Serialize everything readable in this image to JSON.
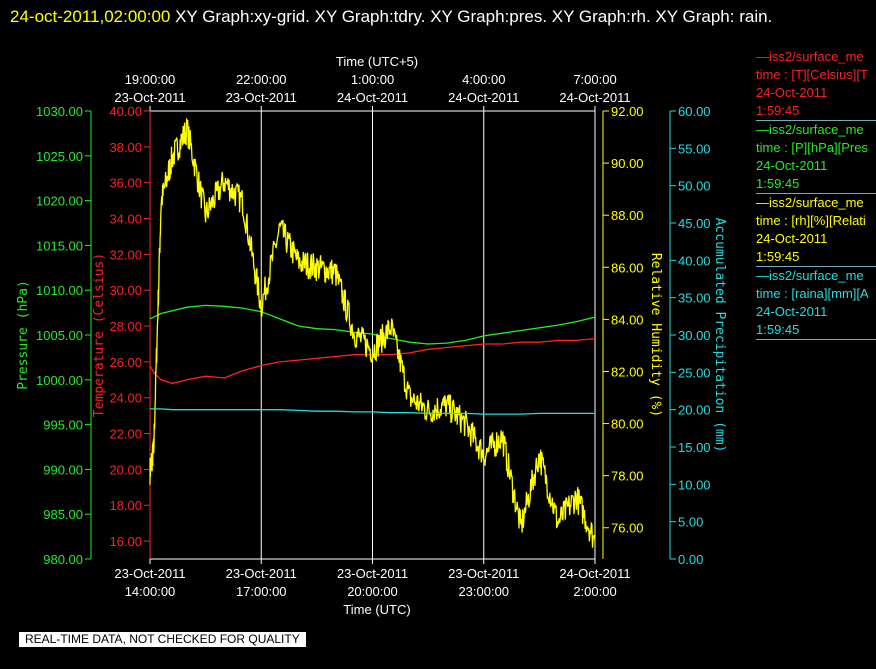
{
  "header": {
    "timestamp": "24-oct-2011,02:00:00",
    "titles": " XY Graph:xy-grid.  XY Graph:tdry.  XY Graph:pres.  XY Graph:rh.  XY Graph: rain."
  },
  "colors": {
    "temperature": "#ff2020",
    "pressure": "#22ee22",
    "humidity": "#ffff00",
    "precipitation": "#22dddd",
    "grid": "#ffffff",
    "frame": "#ffffff"
  },
  "legend": [
    {
      "name": "—iss2/surface_me",
      "units": "time : [T][Celsius][T",
      "date": "24-Oct-2011",
      "time": "1:59:45",
      "color": "#ff2020"
    },
    {
      "name": "—iss2/surface_me",
      "units": "time : [P][hPa][Pres",
      "date": "24-Oct-2011",
      "time": "1:59:45",
      "color": "#22ee22"
    },
    {
      "name": "—iss2/surface_me",
      "units": "time : [rh][%][Relati",
      "date": "24-Oct-2011",
      "time": "1:59:45",
      "color": "#ffff00"
    },
    {
      "name": "—iss2/surface_me",
      "units": "time : [raina][mm][A",
      "date": "24-Oct-2011",
      "time": "1:59:45",
      "color": "#22dddd"
    }
  ],
  "notice": "REAL-TIME DATA, NOT CHECKED FOR QUALITY",
  "chart_data": {
    "type": "line",
    "grid": true,
    "x_top": {
      "label": "Time (UTC+5)",
      "ticks": [
        {
          "time": "19:00:00",
          "date": "23-Oct-2011"
        },
        {
          "time": "22:00:00",
          "date": "23-Oct-2011"
        },
        {
          "time": "1:00:00",
          "date": "24-Oct-2011"
        },
        {
          "time": "4:00:00",
          "date": "24-Oct-2011"
        },
        {
          "time": "7:00:00",
          "date": "24-Oct-2011"
        }
      ]
    },
    "x_bottom": {
      "label": "Time (UTC)",
      "range": [
        "2011-10-23T14:00:00",
        "2011-10-24T02:00:00"
      ],
      "ticks": [
        {
          "date": "23-Oct-2011",
          "time": "14:00:00"
        },
        {
          "date": "23-Oct-2011",
          "time": "17:00:00"
        },
        {
          "date": "23-Oct-2011",
          "time": "20:00:00"
        },
        {
          "date": "23-Oct-2011",
          "time": "23:00:00"
        },
        {
          "date": "24-Oct-2011",
          "time": "2:00:00"
        }
      ]
    },
    "axes": {
      "pressure": {
        "label": "Pressure (hPa)",
        "range": [
          980,
          1030
        ],
        "ticks": [
          "980.00",
          "985.00",
          "990.00",
          "995.00",
          "1000.00",
          "1005.00",
          "1010.00",
          "1015.00",
          "1020.00",
          "1025.00",
          "1030.00"
        ]
      },
      "temperature": {
        "label": "Temperature (Celsius)",
        "range": [
          15,
          40
        ],
        "ticks": [
          "16.00",
          "18.00",
          "20.00",
          "22.00",
          "24.00",
          "26.00",
          "28.00",
          "30.00",
          "32.00",
          "34.00",
          "36.00",
          "38.00",
          "40.00"
        ]
      },
      "humidity": {
        "label": "Relative Humidity (%)",
        "range": [
          74.8,
          92
        ],
        "ticks": [
          "76.00",
          "78.00",
          "80.00",
          "82.00",
          "84.00",
          "86.00",
          "88.00",
          "90.00",
          "92.00"
        ]
      },
      "precipitation": {
        "label": "Accumulated Precipitation (mm)",
        "range": [
          0,
          60
        ],
        "ticks": [
          "0.00",
          "5.00",
          "10.00",
          "15.00",
          "20.00",
          "25.00",
          "30.00",
          "35.00",
          "40.00",
          "45.00",
          "50.00",
          "55.00",
          "60.00"
        ]
      }
    },
    "x_hours": [
      0,
      0.1,
      0.3,
      0.6,
      1,
      1.5,
      2,
      2.5,
      3,
      3.5,
      4,
      4.5,
      5,
      5.5,
      6,
      6.5,
      7,
      7.5,
      8,
      8.5,
      9,
      9.5,
      10,
      10.5,
      11,
      11.5,
      12
    ],
    "series": [
      {
        "name": "Temperature",
        "axis": "temperature",
        "color": "#ff2020",
        "values": [
          25.8,
          25.4,
          25.0,
          24.8,
          25.0,
          25.2,
          25.1,
          25.5,
          25.8,
          26.0,
          26.1,
          26.2,
          26.3,
          26.4,
          26.4,
          26.4,
          26.5,
          26.7,
          26.8,
          26.9,
          27.0,
          27.0,
          27.1,
          27.1,
          27.2,
          27.2,
          27.3
        ]
      },
      {
        "name": "Pressure",
        "axis": "pressure",
        "color": "#22ee22",
        "values": [
          1006.8,
          1007.0,
          1007.4,
          1007.7,
          1008.1,
          1008.3,
          1008.2,
          1008.0,
          1007.6,
          1006.8,
          1006.0,
          1005.7,
          1005.6,
          1005.3,
          1005.1,
          1004.6,
          1004.2,
          1004.0,
          1004.1,
          1004.4,
          1004.9,
          1005.2,
          1005.5,
          1005.8,
          1006.1,
          1006.5,
          1007.0
        ]
      },
      {
        "name": "Relative Humidity",
        "axis": "humidity",
        "color": "#ffff00",
        "values": [
          78.2,
          79.0,
          88.5,
          90.2,
          91.3,
          88.0,
          89.3,
          88.5,
          84.5,
          87.5,
          86.2,
          86.0,
          85.8,
          83.5,
          82.8,
          83.7,
          81.0,
          80.5,
          80.7,
          80.0,
          78.8,
          79.5,
          76.0,
          78.8,
          76.2,
          77.2,
          75.5
        ]
      },
      {
        "name": "Accumulated Precipitation",
        "axis": "precipitation",
        "color": "#22dddd",
        "values": [
          20.1,
          20.1,
          20.1,
          20.0,
          20.0,
          20.0,
          20.0,
          20.0,
          20.0,
          20.0,
          19.9,
          19.8,
          19.8,
          19.7,
          19.7,
          19.6,
          19.6,
          19.5,
          19.5,
          19.5,
          19.4,
          19.4,
          19.4,
          19.5,
          19.5,
          19.5,
          19.5
        ]
      }
    ]
  }
}
